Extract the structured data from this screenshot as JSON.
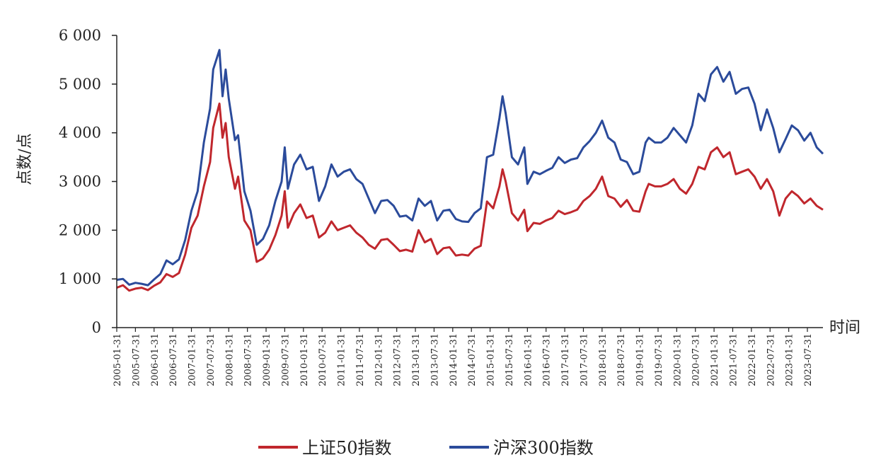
{
  "chart_data": {
    "type": "line",
    "title": "",
    "ylabel": "点数/点",
    "xlabel": "时间",
    "ylim": [
      0,
      6000
    ],
    "yticks": [
      0,
      1000,
      2000,
      3000,
      4000,
      5000,
      6000
    ],
    "ytick_labels": [
      "0",
      "1 000",
      "2 000",
      "3 000",
      "4 000",
      "5 000",
      "6 000"
    ],
    "x_start": "2005-01-31",
    "x_end": "2023-12-31",
    "x_ticks": [
      "2005-01-31",
      "2005-07-31",
      "2006-01-31",
      "2006-07-31",
      "2007-01-31",
      "2007-07-31",
      "2008-01-31",
      "2008-07-31",
      "2009-01-31",
      "2009-07-31",
      "2010-01-31",
      "2010-07-31",
      "2011-01-31",
      "2011-07-31",
      "2012-01-31",
      "2012-07-31",
      "2013-01-31",
      "2013-07-31",
      "2014-01-31",
      "2014-07-31",
      "2015-01-31",
      "2015-07-31",
      "2016-01-31",
      "2016-07-31",
      "2017-01-31",
      "2017-07-31",
      "2018-01-31",
      "2018-07-31",
      "2019-01-31",
      "2019-07-31",
      "2020-01-31",
      "2020-07-31",
      "2021-01-31",
      "2021-07-31",
      "2022-01-31",
      "2022-07-31",
      "2023-01-31",
      "2023-07-31"
    ],
    "legend_position": "bottom",
    "grid": false,
    "series": [
      {
        "name": "上证50指数",
        "color": "#c0272d",
        "points": [
          [
            "2005-01-31",
            820
          ],
          [
            "2005-03-31",
            870
          ],
          [
            "2005-05-31",
            760
          ],
          [
            "2005-07-31",
            800
          ],
          [
            "2005-09-31",
            820
          ],
          [
            "2005-11-31",
            770
          ],
          [
            "2006-01-31",
            860
          ],
          [
            "2006-03-31",
            930
          ],
          [
            "2006-05-31",
            1100
          ],
          [
            "2006-07-31",
            1040
          ],
          [
            "2006-09-31",
            1120
          ],
          [
            "2006-11-31",
            1500
          ],
          [
            "2007-01-31",
            2050
          ],
          [
            "2007-03-31",
            2300
          ],
          [
            "2007-05-31",
            2900
          ],
          [
            "2007-07-31",
            3400
          ],
          [
            "2007-08-31",
            4100
          ],
          [
            "2007-10-31",
            4600
          ],
          [
            "2007-11-31",
            3900
          ],
          [
            "2007-12-31",
            4200
          ],
          [
            "2008-01-31",
            3500
          ],
          [
            "2008-03-31",
            2850
          ],
          [
            "2008-04-31",
            3100
          ],
          [
            "2008-06-31",
            2200
          ],
          [
            "2008-08-31",
            2000
          ],
          [
            "2008-10-31",
            1350
          ],
          [
            "2008-12-31",
            1420
          ],
          [
            "2009-02-31",
            1600
          ],
          [
            "2009-04-31",
            1900
          ],
          [
            "2009-06-31",
            2300
          ],
          [
            "2009-07-31",
            2800
          ],
          [
            "2009-08-31",
            2050
          ],
          [
            "2009-10-31",
            2350
          ],
          [
            "2009-12-31",
            2530
          ],
          [
            "2010-02-31",
            2250
          ],
          [
            "2010-04-31",
            2300
          ],
          [
            "2010-06-31",
            1850
          ],
          [
            "2010-08-31",
            1950
          ],
          [
            "2010-10-31",
            2180
          ],
          [
            "2010-12-31",
            2000
          ],
          [
            "2011-02-31",
            2050
          ],
          [
            "2011-04-31",
            2100
          ],
          [
            "2011-06-31",
            1950
          ],
          [
            "2011-08-31",
            1850
          ],
          [
            "2011-10-31",
            1700
          ],
          [
            "2011-12-31",
            1620
          ],
          [
            "2012-02-31",
            1800
          ],
          [
            "2012-04-31",
            1820
          ],
          [
            "2012-06-31",
            1700
          ],
          [
            "2012-08-31",
            1570
          ],
          [
            "2012-10-31",
            1600
          ],
          [
            "2012-12-31",
            1560
          ],
          [
            "2013-02-31",
            2000
          ],
          [
            "2013-04-31",
            1750
          ],
          [
            "2013-06-31",
            1820
          ],
          [
            "2013-08-31",
            1510
          ],
          [
            "2013-10-31",
            1630
          ],
          [
            "2013-12-31",
            1650
          ],
          [
            "2014-02-31",
            1480
          ],
          [
            "2014-04-31",
            1500
          ],
          [
            "2014-06-31",
            1480
          ],
          [
            "2014-08-31",
            1620
          ],
          [
            "2014-10-31",
            1680
          ],
          [
            "2014-12-31",
            2590
          ],
          [
            "2015-02-31",
            2450
          ],
          [
            "2015-04-31",
            2900
          ],
          [
            "2015-05-31",
            3250
          ],
          [
            "2015-06-31",
            3000
          ],
          [
            "2015-08-31",
            2350
          ],
          [
            "2015-10-31",
            2200
          ],
          [
            "2015-12-31",
            2420
          ],
          [
            "2016-01-31",
            1980
          ],
          [
            "2016-03-31",
            2150
          ],
          [
            "2016-05-31",
            2130
          ],
          [
            "2016-07-31",
            2200
          ],
          [
            "2016-09-31",
            2250
          ],
          [
            "2016-11-31",
            2400
          ],
          [
            "2017-01-31",
            2330
          ],
          [
            "2017-03-31",
            2370
          ],
          [
            "2017-05-31",
            2420
          ],
          [
            "2017-07-31",
            2600
          ],
          [
            "2017-09-31",
            2700
          ],
          [
            "2017-11-31",
            2850
          ],
          [
            "2018-01-31",
            3100
          ],
          [
            "2018-03-31",
            2700
          ],
          [
            "2018-05-31",
            2650
          ],
          [
            "2018-07-31",
            2480
          ],
          [
            "2018-09-31",
            2620
          ],
          [
            "2018-11-31",
            2400
          ],
          [
            "2019-01-31",
            2380
          ],
          [
            "2019-03-31",
            2800
          ],
          [
            "2019-04-31",
            2950
          ],
          [
            "2019-06-31",
            2900
          ],
          [
            "2019-08-31",
            2900
          ],
          [
            "2019-10-31",
            2950
          ],
          [
            "2019-12-31",
            3050
          ],
          [
            "2020-02-31",
            2850
          ],
          [
            "2020-04-31",
            2750
          ],
          [
            "2020-06-31",
            2950
          ],
          [
            "2020-08-31",
            3300
          ],
          [
            "2020-10-31",
            3250
          ],
          [
            "2020-12-31",
            3600
          ],
          [
            "2021-02-31",
            3700
          ],
          [
            "2021-04-31",
            3500
          ],
          [
            "2021-06-31",
            3600
          ],
          [
            "2021-08-31",
            3150
          ],
          [
            "2021-10-31",
            3200
          ],
          [
            "2021-12-31",
            3250
          ],
          [
            "2022-02-31",
            3100
          ],
          [
            "2022-04-31",
            2850
          ],
          [
            "2022-06-31",
            3050
          ],
          [
            "2022-08-31",
            2800
          ],
          [
            "2022-10-31",
            2300
          ],
          [
            "2022-12-31",
            2650
          ],
          [
            "2023-02-31",
            2800
          ],
          [
            "2023-04-31",
            2700
          ],
          [
            "2023-06-31",
            2550
          ],
          [
            "2023-08-31",
            2650
          ],
          [
            "2023-10-31",
            2500
          ],
          [
            "2023-12-31",
            2420
          ]
        ]
      },
      {
        "name": "沪深300指数",
        "color": "#2b4b9b",
        "points": [
          [
            "2005-01-31",
            980
          ],
          [
            "2005-03-31",
            1000
          ],
          [
            "2005-05-31",
            880
          ],
          [
            "2005-07-31",
            920
          ],
          [
            "2005-09-31",
            900
          ],
          [
            "2005-11-31",
            870
          ],
          [
            "2006-01-31",
            990
          ],
          [
            "2006-03-31",
            1100
          ],
          [
            "2006-05-31",
            1380
          ],
          [
            "2006-07-31",
            1300
          ],
          [
            "2006-09-31",
            1400
          ],
          [
            "2006-11-31",
            1800
          ],
          [
            "2007-01-31",
            2400
          ],
          [
            "2007-03-31",
            2800
          ],
          [
            "2007-05-31",
            3800
          ],
          [
            "2007-07-31",
            4500
          ],
          [
            "2007-08-31",
            5300
          ],
          [
            "2007-10-31",
            5700
          ],
          [
            "2007-11-31",
            4750
          ],
          [
            "2007-12-31",
            5300
          ],
          [
            "2008-01-31",
            4700
          ],
          [
            "2008-03-31",
            3850
          ],
          [
            "2008-04-31",
            3950
          ],
          [
            "2008-06-31",
            2800
          ],
          [
            "2008-08-31",
            2400
          ],
          [
            "2008-10-31",
            1700
          ],
          [
            "2008-12-31",
            1820
          ],
          [
            "2009-02-31",
            2100
          ],
          [
            "2009-04-31",
            2600
          ],
          [
            "2009-06-31",
            3000
          ],
          [
            "2009-07-31",
            3700
          ],
          [
            "2009-08-31",
            2850
          ],
          [
            "2009-10-31",
            3350
          ],
          [
            "2009-12-31",
            3550
          ],
          [
            "2010-02-31",
            3250
          ],
          [
            "2010-04-31",
            3300
          ],
          [
            "2010-06-31",
            2600
          ],
          [
            "2010-08-31",
            2900
          ],
          [
            "2010-10-31",
            3350
          ],
          [
            "2010-12-31",
            3100
          ],
          [
            "2011-02-31",
            3200
          ],
          [
            "2011-04-31",
            3250
          ],
          [
            "2011-06-31",
            3050
          ],
          [
            "2011-08-31",
            2950
          ],
          [
            "2011-10-31",
            2650
          ],
          [
            "2011-12-31",
            2350
          ],
          [
            "2012-02-31",
            2600
          ],
          [
            "2012-04-31",
            2620
          ],
          [
            "2012-06-31",
            2500
          ],
          [
            "2012-08-31",
            2280
          ],
          [
            "2012-10-31",
            2300
          ],
          [
            "2012-12-31",
            2200
          ],
          [
            "2013-02-31",
            2650
          ],
          [
            "2013-04-31",
            2500
          ],
          [
            "2013-06-31",
            2600
          ],
          [
            "2013-08-31",
            2200
          ],
          [
            "2013-10-31",
            2400
          ],
          [
            "2013-12-31",
            2420
          ],
          [
            "2014-02-31",
            2230
          ],
          [
            "2014-04-31",
            2180
          ],
          [
            "2014-06-31",
            2170
          ],
          [
            "2014-08-31",
            2350
          ],
          [
            "2014-10-31",
            2450
          ],
          [
            "2014-12-31",
            3500
          ],
          [
            "2015-02-31",
            3550
          ],
          [
            "2015-04-31",
            4300
          ],
          [
            "2015-05-31",
            4750
          ],
          [
            "2015-06-31",
            4400
          ],
          [
            "2015-08-31",
            3500
          ],
          [
            "2015-10-31",
            3350
          ],
          [
            "2015-12-31",
            3700
          ],
          [
            "2016-01-31",
            2950
          ],
          [
            "2016-03-31",
            3200
          ],
          [
            "2016-05-31",
            3150
          ],
          [
            "2016-07-31",
            3220
          ],
          [
            "2016-09-31",
            3280
          ],
          [
            "2016-11-31",
            3500
          ],
          [
            "2017-01-31",
            3380
          ],
          [
            "2017-03-31",
            3450
          ],
          [
            "2017-05-31",
            3480
          ],
          [
            "2017-07-31",
            3700
          ],
          [
            "2017-09-31",
            3830
          ],
          [
            "2017-11-31",
            4000
          ],
          [
            "2018-01-31",
            4250
          ],
          [
            "2018-03-31",
            3900
          ],
          [
            "2018-05-31",
            3800
          ],
          [
            "2018-07-31",
            3450
          ],
          [
            "2018-09-31",
            3400
          ],
          [
            "2018-11-31",
            3150
          ],
          [
            "2019-01-31",
            3200
          ],
          [
            "2019-03-31",
            3800
          ],
          [
            "2019-04-31",
            3900
          ],
          [
            "2019-06-31",
            3800
          ],
          [
            "2019-08-31",
            3800
          ],
          [
            "2019-10-31",
            3900
          ],
          [
            "2019-12-31",
            4100
          ],
          [
            "2020-02-31",
            3950
          ],
          [
            "2020-04-31",
            3800
          ],
          [
            "2020-06-31",
            4150
          ],
          [
            "2020-08-31",
            4800
          ],
          [
            "2020-10-31",
            4650
          ],
          [
            "2020-12-31",
            5200
          ],
          [
            "2021-02-31",
            5350
          ],
          [
            "2021-04-31",
            5050
          ],
          [
            "2021-06-31",
            5250
          ],
          [
            "2021-08-31",
            4800
          ],
          [
            "2021-10-31",
            4900
          ],
          [
            "2021-12-31",
            4930
          ],
          [
            "2022-02-31",
            4600
          ],
          [
            "2022-04-31",
            4050
          ],
          [
            "2022-06-31",
            4480
          ],
          [
            "2022-08-31",
            4100
          ],
          [
            "2022-10-31",
            3600
          ],
          [
            "2022-12-31",
            3870
          ],
          [
            "2023-02-31",
            4150
          ],
          [
            "2023-04-31",
            4050
          ],
          [
            "2023-06-31",
            3840
          ],
          [
            "2023-08-31",
            4000
          ],
          [
            "2023-10-31",
            3700
          ],
          [
            "2023-12-31",
            3570
          ]
        ]
      }
    ]
  }
}
